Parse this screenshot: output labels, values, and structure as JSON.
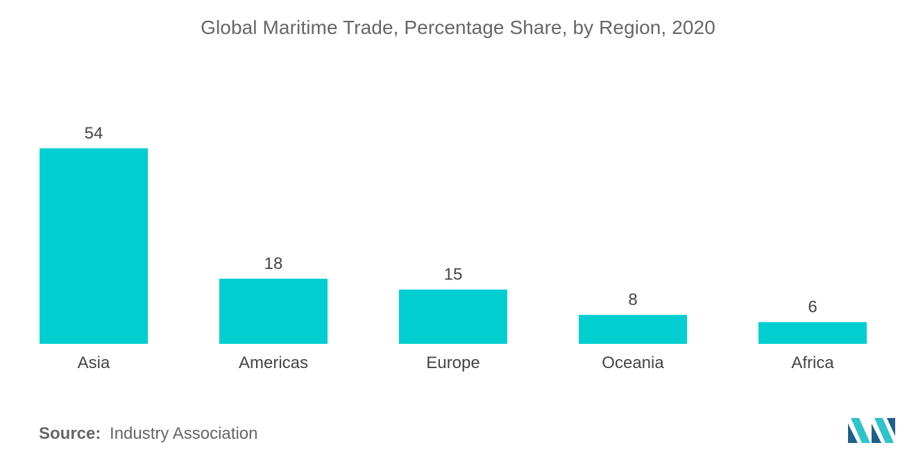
{
  "chart_data": {
    "type": "bar",
    "title": "Global Maritime Trade, Percentage Share, by Region,  2020",
    "categories": [
      "Asia",
      "Americas",
      "Europe",
      "Oceania",
      "Africa"
    ],
    "values": [
      54,
      18,
      15,
      8,
      6
    ],
    "xlabel": "",
    "ylabel": "",
    "ylim": [
      0,
      54
    ],
    "grid": false,
    "bar_color": "#00CED1"
  },
  "source": {
    "label": "Source:",
    "text": "Industry Association"
  },
  "logo": {
    "icon": "mordor-intelligence-logo",
    "colors": [
      "#1E5F8C",
      "#2EC4C9"
    ]
  }
}
